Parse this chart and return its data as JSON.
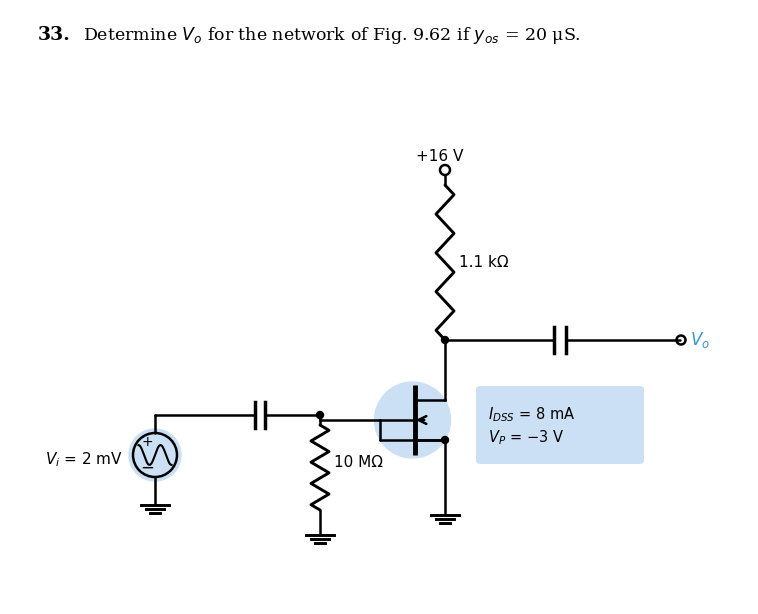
{
  "bg_color": "#ffffff",
  "line_color": "#000000",
  "highlight_color": "#cce0f5",
  "label_Vo": "$V_o$",
  "label_16V": "+16 V",
  "label_1k1": "1.1 kΩ",
  "label_10M": "10 MΩ",
  "label_Vi": "$V_i$ = 2 mV",
  "label_IDSS": "$I_{DSS}$ = 8 mA",
  "label_VP": "$V_P$ = −3 V",
  "label_plus": "+",
  "label_minus": "−",
  "title_bold": "33.",
  "title_rest": "  Determine $V_o$ for the network of Fig. 9.62 if $y_{os}$ = 20 μS.",
  "Vo_color": "#3399cc"
}
